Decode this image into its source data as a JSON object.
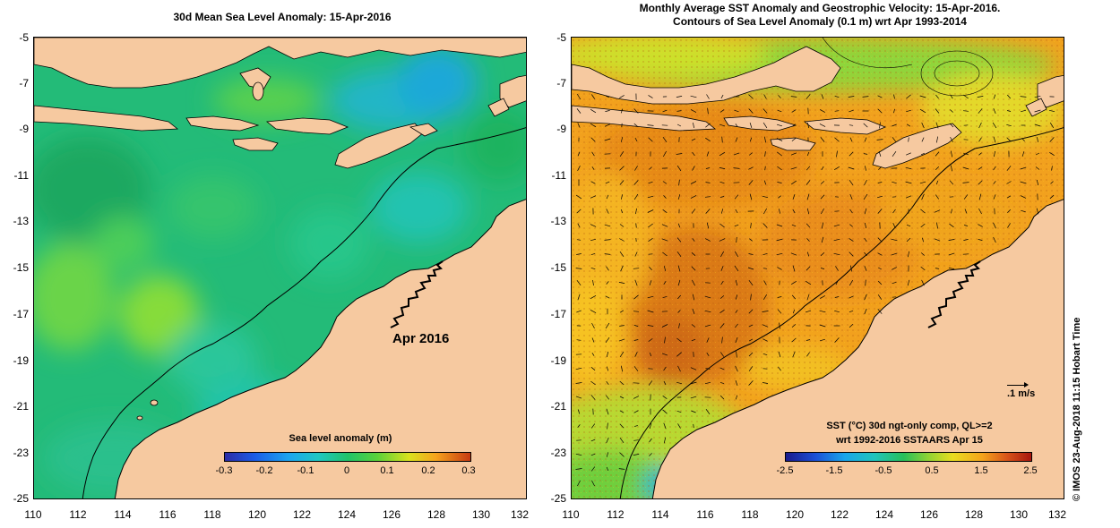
{
  "left_panel": {
    "title": "30d Mean Sea Level Anomaly: 15-Apr-2016",
    "annotation": "Apr 2016",
    "colorbar": {
      "label": "Sea level anomaly (m)",
      "ticks": [
        "-0.3",
        "-0.2",
        "-0.1",
        "0",
        "0.1",
        "0.2",
        "0.3"
      ]
    }
  },
  "right_panel": {
    "title_line1": "Monthly Average SST Anomaly  and Geostrophic Velocity: 15-Apr-2016.",
    "title_line2": "Contours of Sea Level Anomaly (0.1 m) wrt Apr 1993-2014",
    "vector_scale_label": ".1 m/s",
    "colorbar": {
      "label_line1": "SST (°C) 30d ngt-only comp, QL>=2",
      "label_line2": "wrt 1992-2016 SSTAARS Apr 15",
      "ticks": [
        "-2.5",
        "-1.5",
        "-0.5",
        "0.5",
        "1.5",
        "2.5"
      ]
    }
  },
  "axes": {
    "y_ticks": [
      "-5",
      "-7",
      "-9",
      "-11",
      "-13",
      "-15",
      "-17",
      "-19",
      "-21",
      "-23",
      "-25"
    ],
    "x_ticks": [
      "110",
      "112",
      "114",
      "116",
      "118",
      "120",
      "122",
      "124",
      "126",
      "128",
      "130",
      "132"
    ]
  },
  "credit": "© IMOS 23-Aug-2018 11:15 Hobart Time",
  "colors": {
    "land": "#f6c9a0",
    "sla_base": "#2fc07a",
    "sst_base": "#f0a020"
  }
}
